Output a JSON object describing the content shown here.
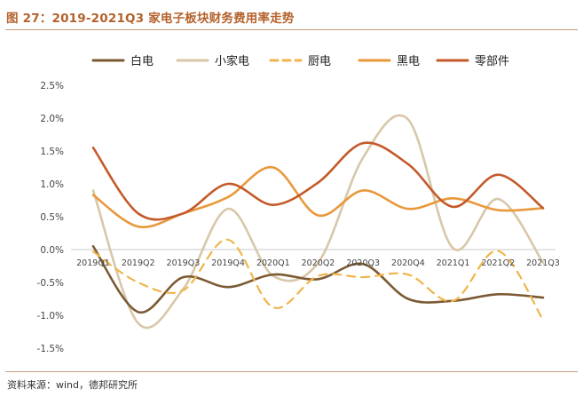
{
  "header": {
    "title": "图 27：2019-2021Q3 家电子板块财务费用率走势"
  },
  "footer": {
    "source": "资料来源：wind，德邦研究所"
  },
  "chart_data": {
    "type": "line",
    "title": "2019-2021Q3 家电子板块财务费用率走势",
    "xlabel": "",
    "ylabel": "",
    "categories": [
      "2019Q1",
      "2019Q2",
      "2019Q3",
      "2019Q4",
      "2020Q1",
      "2020Q2",
      "2020Q3",
      "2020Q4",
      "2021Q1",
      "2021Q2",
      "2021Q3"
    ],
    "ylim": [
      -1.5,
      2.5
    ],
    "yticks": [
      2.5,
      2.0,
      1.5,
      1.0,
      0.5,
      0.0,
      -0.5,
      -1.0,
      -1.5
    ],
    "ytick_labels": [
      "2.5%",
      "2.0%",
      "1.5%",
      "1.0%",
      "0.5%",
      "0.0%",
      "-0.5%",
      "-1.0%",
      "-1.5%"
    ],
    "legend_position": "top",
    "grid": false,
    "series": [
      {
        "name": "白电",
        "color": "#7b5a33",
        "dash": "solid",
        "values": [
          0.05,
          -0.95,
          -0.42,
          -0.57,
          -0.38,
          -0.45,
          -0.22,
          -0.75,
          -0.78,
          -0.68,
          -0.73
        ]
      },
      {
        "name": "小家电",
        "color": "#d8c7a8",
        "dash": "solid",
        "values": [
          0.9,
          -1.12,
          -0.6,
          0.62,
          -0.4,
          -0.2,
          1.4,
          1.98,
          0.02,
          0.77,
          -0.2
        ]
      },
      {
        "name": "厨电",
        "color": "#f0b54a",
        "dash": "dashed",
        "values": [
          -0.03,
          -0.5,
          -0.62,
          0.15,
          -0.88,
          -0.4,
          -0.42,
          -0.38,
          -0.78,
          -0.02,
          -1.07
        ]
      },
      {
        "name": "黑电",
        "color": "#e9983b",
        "dash": "solid",
        "values": [
          0.83,
          0.35,
          0.55,
          0.8,
          1.25,
          0.52,
          0.9,
          0.62,
          0.78,
          0.6,
          0.63
        ]
      },
      {
        "name": "零部件",
        "color": "#c45a2a",
        "dash": "solid",
        "values": [
          1.55,
          0.55,
          0.55,
          1.0,
          0.68,
          1.02,
          1.62,
          1.3,
          0.65,
          1.14,
          0.63
        ]
      }
    ]
  }
}
